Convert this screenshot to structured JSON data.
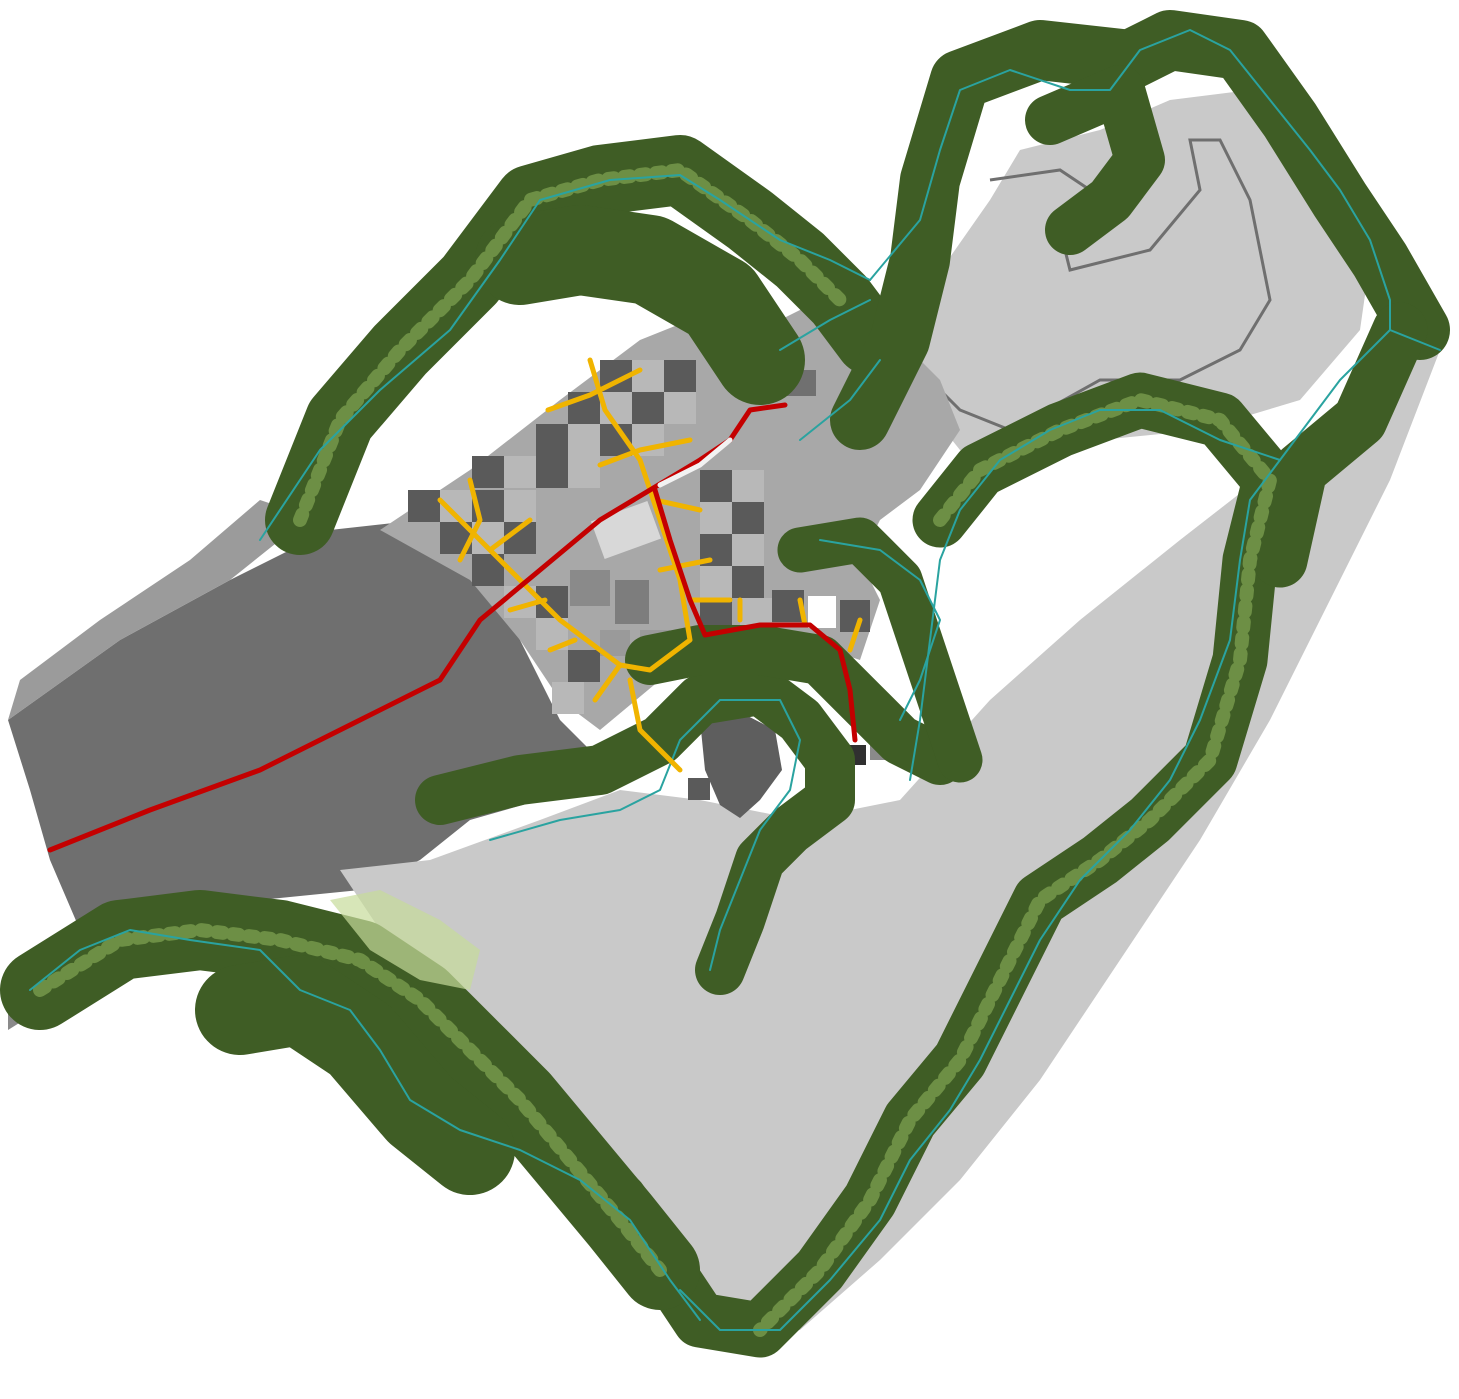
{
  "colors": {
    "background": "#ffffff",
    "terrain_light": "#c9c9c9",
    "terrain_mid": "#9b9b9b",
    "terrain_dark": "#6f6f6f",
    "terrain_outline": "#8a8a8a",
    "plot_light": "#b8b8b8",
    "plot_dark": "#5a5a5a",
    "building": "#d8d8d8",
    "tree_dark": "#3f5d25",
    "tree_light": "#6d8f45",
    "meadow": "#c6dc9a",
    "stream": "#2aa3a0",
    "main_road": "#c40000",
    "secondary_road": "#f0b400",
    "path_white": "#f2f2f2"
  },
  "icons": {
    "compass": "none",
    "legend": "none"
  },
  "features": [
    {
      "name": "main-road",
      "kind": "road",
      "class": "primary"
    },
    {
      "name": "village-lanes",
      "kind": "road",
      "class": "secondary"
    },
    {
      "name": "streams",
      "kind": "water"
    },
    {
      "name": "forest-belts",
      "kind": "vegetation"
    },
    {
      "name": "central-pond",
      "kind": "water-body"
    },
    {
      "name": "quarry-basin",
      "kind": "terrain"
    },
    {
      "name": "open-field",
      "kind": "terrain"
    }
  ]
}
